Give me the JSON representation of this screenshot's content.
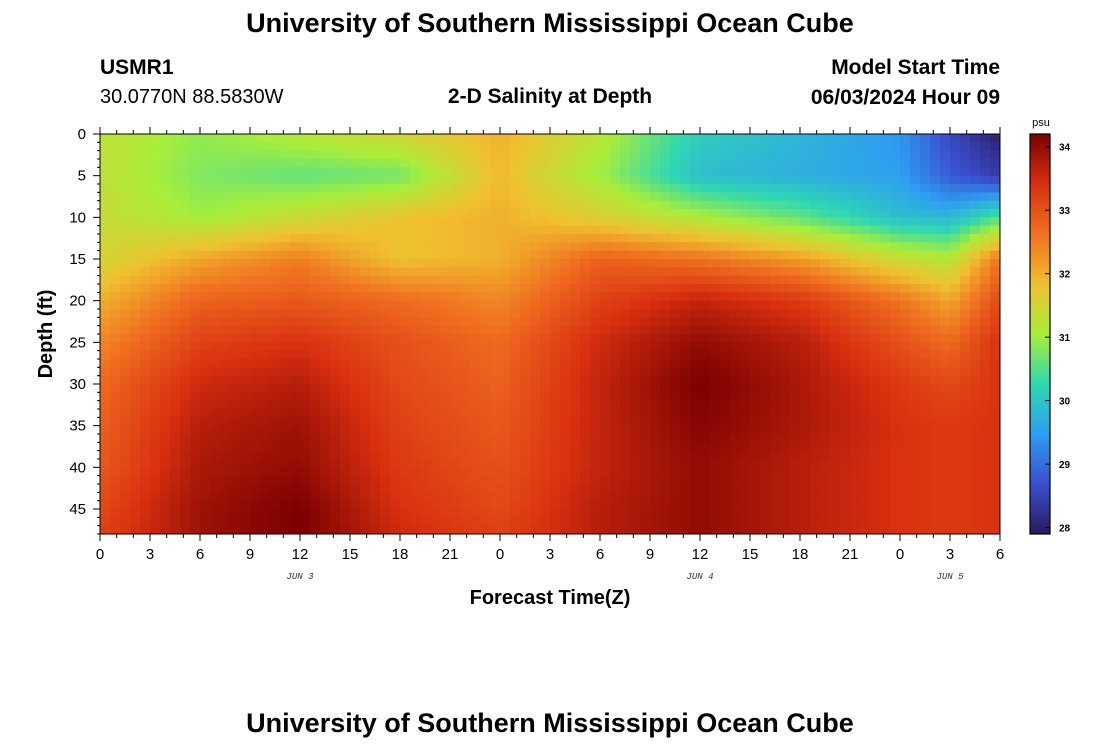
{
  "header": {
    "title": "University of Southern Mississippi Ocean Cube",
    "station_id": "USMR1",
    "station_coords": "30.0770N  88.5830W",
    "plot_title": "2-D Salinity at Depth",
    "model_start_label": "Model Start Time",
    "model_start_value": "06/03/2024 Hour 09"
  },
  "footer": {
    "title": "University of Southern Mississippi Ocean Cube"
  },
  "chart_data": {
    "type": "heatmap",
    "xlabel": "Forecast Time(Z)",
    "ylabel": "Depth (ft)",
    "x_hours_range": [
      0,
      54
    ],
    "ylim": [
      0,
      48
    ],
    "x_tick_labels": [
      "0",
      "3",
      "6",
      "9",
      "12",
      "15",
      "18",
      "21",
      "0",
      "3",
      "6",
      "9",
      "12",
      "15",
      "18",
      "21",
      "0",
      "3",
      "6"
    ],
    "y_ticks": [
      0,
      5,
      10,
      15,
      20,
      25,
      30,
      35,
      40,
      45
    ],
    "day_labels": [
      {
        "text": "JUN 3",
        "hour": 12
      },
      {
        "text": "JUN 4",
        "hour": 36
      },
      {
        "text": "JUN 5",
        "hour": 51
      }
    ],
    "colorbar": {
      "unit": "psu",
      "range": [
        27.9,
        34.2
      ],
      "ticks": [
        28,
        29,
        30,
        31,
        32,
        33,
        34
      ],
      "colors": [
        "#2a1a5e",
        "#3a4fd0",
        "#2e9ef0",
        "#2fd8b0",
        "#a8ee3a",
        "#f0c030",
        "#f07020",
        "#d83010",
        "#7a0000"
      ]
    },
    "x_hours": [
      0,
      6,
      12,
      18,
      24,
      30,
      36,
      42,
      48,
      51,
      54
    ],
    "depths_ft": [
      0,
      5,
      10,
      15,
      20,
      25,
      30,
      35,
      40,
      45,
      48
    ],
    "salinity_psu": [
      [
        31.3,
        30.9,
        31.2,
        31.5,
        32.0,
        31.2,
        30.1,
        29.8,
        29.4,
        28.6,
        28.0
      ],
      [
        31.3,
        30.8,
        30.6,
        30.7,
        31.9,
        31.0,
        29.9,
        29.7,
        29.5,
        28.8,
        28.4
      ],
      [
        31.4,
        31.0,
        31.4,
        31.8,
        32.0,
        31.6,
        31.1,
        30.6,
        29.9,
        29.8,
        30.5
      ],
      [
        31.5,
        32.1,
        32.5,
        31.8,
        32.0,
        32.8,
        32.6,
        32.2,
        31.4,
        31.2,
        32.6
      ],
      [
        32.0,
        32.8,
        32.9,
        32.7,
        32.4,
        33.2,
        33.6,
        33.3,
        32.6,
        32.1,
        33.1
      ],
      [
        32.4,
        33.2,
        33.4,
        33.0,
        32.7,
        33.5,
        34.0,
        33.7,
        33.0,
        32.7,
        33.4
      ],
      [
        32.7,
        33.5,
        33.7,
        33.1,
        32.8,
        33.6,
        34.2,
        33.8,
        33.3,
        33.1,
        33.4
      ],
      [
        32.8,
        33.7,
        33.9,
        33.2,
        32.9,
        33.6,
        34.1,
        33.8,
        33.4,
        33.3,
        33.4
      ],
      [
        32.9,
        33.8,
        34.0,
        33.3,
        33.0,
        33.6,
        34.0,
        33.7,
        33.4,
        33.3,
        33.4
      ],
      [
        33.1,
        33.9,
        34.2,
        33.4,
        33.1,
        33.7,
        34.0,
        33.7,
        33.4,
        33.3,
        33.4
      ],
      [
        33.2,
        33.9,
        34.2,
        33.5,
        33.2,
        33.7,
        34.0,
        33.7,
        33.4,
        33.3,
        33.4
      ]
    ]
  }
}
